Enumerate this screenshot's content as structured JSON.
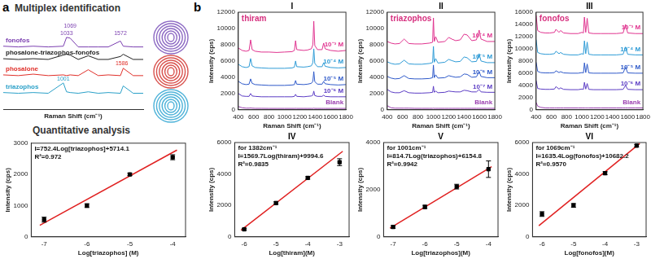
{
  "figure": {
    "panel_labels": [
      "a",
      "b"
    ]
  },
  "chart_data": [
    {
      "type": "line",
      "title": "Multiplex identification",
      "tick_labels": false,
      "grid": false,
      "x_label": "Raman Shift (cm⁻¹)",
      "xlim": [
        400,
        1800
      ],
      "ylim": [
        0,
        12
      ],
      "x": [
        400,
        550,
        700,
        850,
        1001,
        1033,
        1069,
        1150,
        1250,
        1350,
        1450,
        1572,
        1600,
        1700,
        1800
      ],
      "series": [
        {
          "name": "fonofos",
          "color": "#7b3fb0",
          "values": [
            8.6,
            8.5,
            8.6,
            8.5,
            8.6,
            9.8,
            9.7,
            8.5,
            8.5,
            8.5,
            8.5,
            9.3,
            8.6,
            8.5,
            8.5
          ]
        },
        {
          "name": "phosalone-triazophos-fonofos",
          "color": "#222222",
          "values": [
            6.9,
            6.8,
            6.9,
            6.8,
            7.4,
            7.5,
            7.4,
            6.8,
            7.3,
            6.8,
            6.8,
            7.2,
            7.5,
            6.8,
            6.8
          ]
        },
        {
          "name": "phosalone",
          "color": "#e0302a",
          "values": [
            4.7,
            4.6,
            4.8,
            4.6,
            4.7,
            4.6,
            4.7,
            4.6,
            5.4,
            4.6,
            4.7,
            4.6,
            5.6,
            4.6,
            4.6
          ]
        },
        {
          "name": "triazophos",
          "color": "#2aa0c8",
          "values": [
            2.3,
            2.2,
            2.3,
            2.2,
            3.6,
            2.4,
            2.3,
            2.2,
            2.4,
            2.2,
            2.3,
            2.2,
            3.2,
            2.2,
            2.2
          ]
        }
      ],
      "annotations": [
        {
          "text": "1033",
          "x": 1033,
          "y": 9.9,
          "color": "#7b3fb0"
        },
        {
          "text": "1069",
          "x": 1069,
          "y": 10.9,
          "color": "#7b3fb0"
        },
        {
          "text": "1572",
          "x": 1572,
          "y": 10.0,
          "color": "#7b3fb0"
        },
        {
          "text": "1001",
          "x": 1001,
          "y": 3.8,
          "color": "#2aa0c8"
        },
        {
          "text": "1586",
          "x": 1586,
          "y": 5.8,
          "color": "#e0302a"
        }
      ]
    },
    {
      "type": "scatter",
      "title": "Quantitative analysis",
      "grid": false,
      "x_label": "Log[triazophos] (M)",
      "y_label": "Intensity (cps)",
      "xlim": [
        -7.3,
        -3.7
      ],
      "xticks": [
        -7,
        -6,
        -5,
        -4
      ],
      "ylim": [
        0,
        3000
      ],
      "yticks": [
        0,
        1000,
        2000,
        3000
      ],
      "annotations": [
        "I=752.4Log[triazophos]+5714.1",
        "R²=0.972"
      ],
      "series": [
        {
          "type": "scatter",
          "marker": "square",
          "color": "#000000",
          "x": [
            -7,
            -6,
            -5,
            -4
          ],
          "values": [
            550,
            1000,
            2000,
            2550
          ],
          "errors": [
            80,
            60,
            40,
            80
          ]
        },
        {
          "type": "line",
          "color": "#e02020",
          "x": [
            -7.1,
            -3.9
          ],
          "values": [
            372.1,
            2779.7
          ]
        }
      ]
    },
    {
      "type": "line",
      "panel": "I",
      "title": "thiram",
      "grid": false,
      "x_label": "Raman Shift (cm⁻¹)",
      "y_label": "Intensity (cps)",
      "xlim": [
        400,
        1800
      ],
      "xticks": [
        400,
        600,
        800,
        1000,
        1200,
        1400,
        1600,
        1800
      ],
      "ylim": [
        0,
        12000
      ],
      "yticks": [
        0,
        2000,
        4000,
        6000,
        8000,
        10000,
        12000
      ],
      "x": [
        400,
        450,
        500,
        540,
        560,
        580,
        620,
        700,
        800,
        900,
        1000,
        1100,
        1130,
        1145,
        1160,
        1250,
        1300,
        1350,
        1370,
        1382,
        1395,
        1430,
        1490,
        1510,
        1530,
        1600,
        1700,
        1800
      ],
      "series": [
        {
          "name": "10⁻³ M",
          "color": "#e0338f",
          "values": [
            7600,
            7300,
            7200,
            7300,
            8600,
            7400,
            7200,
            7100,
            7100,
            7050,
            7100,
            7150,
            7300,
            8500,
            7400,
            7300,
            7350,
            7500,
            8000,
            10900,
            7900,
            7400,
            7400,
            8200,
            7500,
            7300,
            7200,
            7300
          ]
        },
        {
          "name": "10⁻⁴ M",
          "color": "#2e9bd6",
          "values": [
            5600,
            5300,
            5200,
            5300,
            6300,
            5400,
            5200,
            5150,
            5100,
            5100,
            5100,
            5150,
            5250,
            6000,
            5300,
            5250,
            5300,
            5400,
            5800,
            7500,
            5700,
            5300,
            5300,
            5800,
            5350,
            5200,
            5150,
            5200
          ]
        },
        {
          "name": "10⁻⁵ M",
          "color": "#2e59c9",
          "values": [
            3500,
            3200,
            3100,
            3150,
            3800,
            3250,
            3100,
            3050,
            3000,
            3000,
            3000,
            3050,
            3100,
            3600,
            3150,
            3100,
            3150,
            3250,
            3500,
            4700,
            3450,
            3150,
            3150,
            3500,
            3200,
            3100,
            3050,
            3100
          ]
        },
        {
          "name": "10⁻⁶ M",
          "color": "#5b3cc4",
          "values": [
            2000,
            1700,
            1650,
            1650,
            2000,
            1700,
            1650,
            1600,
            1600,
            1600,
            1600,
            1600,
            1650,
            1900,
            1650,
            1600,
            1650,
            1700,
            1800,
            2300,
            1750,
            1650,
            1650,
            1800,
            1650,
            1600,
            1600,
            1600
          ]
        },
        {
          "name": "Blank",
          "color": "#9b3fb0",
          "values": [
            400,
            250,
            200,
            200,
            220,
            200,
            180,
            180,
            170,
            170,
            170,
            170,
            170,
            180,
            170,
            170,
            170,
            170,
            170,
            200,
            170,
            170,
            170,
            170,
            170,
            170,
            170,
            170
          ]
        }
      ]
    },
    {
      "type": "line",
      "panel": "II",
      "title": "triazophos",
      "grid": false,
      "x_label": "Raman Shift (cm⁻¹)",
      "y_label": "Intensity (cps)",
      "xlim": [
        400,
        1800
      ],
      "xticks": [
        400,
        600,
        800,
        1000,
        1200,
        1400,
        1600,
        1800
      ],
      "ylim": [
        0,
        12000
      ],
      "yticks": [
        0,
        2000,
        4000,
        6000,
        8000,
        10000,
        12000
      ],
      "x": [
        400,
        450,
        500,
        560,
        620,
        680,
        760,
        850,
        950,
        990,
        1001,
        1012,
        1030,
        1060,
        1150,
        1200,
        1240,
        1290,
        1350,
        1400,
        1440,
        1500,
        1560,
        1596,
        1620,
        1700,
        1800
      ],
      "series": [
        {
          "name": "10⁻⁴ M",
          "color": "#e0338f",
          "values": [
            8400,
            8200,
            8100,
            8150,
            8700,
            8150,
            8100,
            8100,
            8200,
            8300,
            11300,
            8400,
            9000,
            8300,
            8400,
            8900,
            8700,
            8500,
            8600,
            9300,
            9200,
            8500,
            8600,
            9800,
            8700,
            8400,
            8400
          ]
        },
        {
          "name": "10⁻⁵ M",
          "color": "#2e9bd6",
          "values": [
            5900,
            5700,
            5600,
            5650,
            6100,
            5650,
            5600,
            5600,
            5700,
            5800,
            7800,
            5850,
            6300,
            5750,
            5850,
            6200,
            6050,
            5900,
            5950,
            6500,
            6400,
            5900,
            5950,
            6900,
            6000,
            5800,
            5800
          ]
        },
        {
          "name": "10⁻⁶ M",
          "color": "#2e59c9",
          "values": [
            4100,
            3900,
            3800,
            3850,
            4200,
            3850,
            3800,
            3800,
            3850,
            3950,
            5500,
            3950,
            4300,
            3900,
            3950,
            4200,
            4100,
            4000,
            4050,
            4400,
            4350,
            4000,
            4050,
            4700,
            4100,
            3950,
            3950
          ]
        },
        {
          "name": "10⁻⁷ M",
          "color": "#5b3cc4",
          "values": [
            2500,
            2200,
            2100,
            2100,
            2350,
            2100,
            2050,
            2050,
            2100,
            2150,
            2900,
            2150,
            2300,
            2100,
            2150,
            2300,
            2250,
            2200,
            2200,
            2400,
            2350,
            2200,
            2200,
            2500,
            2200,
            2150,
            2150
          ]
        },
        {
          "name": "Blank",
          "color": "#9b3fb0",
          "values": [
            500,
            250,
            200,
            200,
            200,
            200,
            180,
            180,
            180,
            180,
            200,
            180,
            180,
            180,
            180,
            180,
            180,
            180,
            180,
            180,
            180,
            180,
            180,
            180,
            180,
            180,
            180
          ]
        }
      ]
    },
    {
      "type": "line",
      "panel": "III",
      "title": "fonofos",
      "grid": false,
      "x_label": "Raman Shift (cm⁻¹)",
      "y_label": "Intensity (cps)",
      "xlim": [
        400,
        1800
      ],
      "xticks": [
        400,
        600,
        800,
        1000,
        1200,
        1400,
        1600,
        1800
      ],
      "ylim": [
        0,
        16000
      ],
      "yticks": [
        0,
        2000,
        4000,
        6000,
        8000,
        10000,
        12000,
        14000,
        16000
      ],
      "x": [
        400,
        420,
        460,
        520,
        580,
        640,
        660,
        700,
        720,
        760,
        850,
        950,
        1000,
        1020,
        1033,
        1050,
        1069,
        1090,
        1150,
        1250,
        1350,
        1450,
        1540,
        1572,
        1600,
        1700,
        1800
      ],
      "series": [
        {
          "name": "10⁻³ M",
          "color": "#e0338f",
          "values": [
            15500,
            13000,
            12700,
            12600,
            12600,
            12700,
            13200,
            12700,
            13000,
            12600,
            12500,
            12500,
            12700,
            12600,
            15200,
            12700,
            15000,
            12600,
            12500,
            12500,
            12500,
            12500,
            12600,
            14000,
            12600,
            12500,
            12500
          ]
        },
        {
          "name": "10⁻⁴ M",
          "color": "#2e9bd6",
          "values": [
            11500,
            9400,
            9200,
            9100,
            9100,
            9200,
            9600,
            9200,
            9400,
            9100,
            9000,
            9000,
            9200,
            9100,
            11300,
            9200,
            11100,
            9100,
            9000,
            9000,
            9000,
            9000,
            9100,
            10300,
            9100,
            9000,
            9000
          ]
        },
        {
          "name": "10⁻⁵ M",
          "color": "#2e59c9",
          "values": [
            7800,
            6300,
            6100,
            6050,
            6050,
            6100,
            6400,
            6100,
            6250,
            6050,
            6000,
            6000,
            6100,
            6050,
            7700,
            6100,
            7500,
            6050,
            6000,
            6000,
            6000,
            6000,
            6050,
            7000,
            6050,
            6000,
            6000
          ]
        },
        {
          "name": "10⁻⁶ M",
          "color": "#5b3cc4",
          "values": [
            4800,
            3500,
            3400,
            3350,
            3350,
            3400,
            3800,
            3400,
            3600,
            3350,
            3300,
            3300,
            3400,
            3350,
            4500,
            3400,
            4300,
            3350,
            3300,
            3300,
            3300,
            3300,
            3350,
            4000,
            3350,
            3300,
            3300
          ]
        },
        {
          "name": "Blank",
          "color": "#9b3fb0",
          "values": [
            1200,
            600,
            400,
            300,
            300,
            300,
            300,
            300,
            300,
            300,
            300,
            300,
            300,
            300,
            300,
            300,
            300,
            300,
            300,
            300,
            300,
            300,
            300,
            300,
            300,
            300,
            300
          ]
        }
      ]
    },
    {
      "type": "scatter",
      "panel": "IV",
      "grid": false,
      "x_label": "Log[thiram](M)",
      "y_label": "Intensity (cps)",
      "xlim": [
        -6.3,
        -2.7
      ],
      "xticks": [
        -6,
        -5,
        -4,
        -3
      ],
      "ylim": [
        0,
        6000
      ],
      "yticks": [
        0,
        2000,
        4000,
        6000
      ],
      "annotations": [
        "for 1382cm⁻¹",
        "I=1569.7Log(thiram)+9994.6",
        "R²=0.9835"
      ],
      "series": [
        {
          "type": "scatter",
          "marker": "square",
          "color": "#000000",
          "x": [
            -6,
            -5,
            -4,
            -3
          ],
          "values": [
            480,
            2150,
            3750,
            4750
          ],
          "errors": [
            60,
            80,
            80,
            220
          ]
        },
        {
          "type": "line",
          "color": "#e02020",
          "x": [
            -6.1,
            -2.9
          ],
          "values": [
            419.4,
            5442.5
          ]
        }
      ]
    },
    {
      "type": "scatter",
      "panel": "V",
      "grid": false,
      "x_label": "Log[triazophos](M)",
      "y_label": "Intensity (cps)",
      "xlim": [
        -7.3,
        -3.7
      ],
      "xticks": [
        -7,
        -6,
        -5,
        -4
      ],
      "ylim": [
        0,
        4000
      ],
      "yticks": [
        0,
        2000,
        4000
      ],
      "annotations": [
        "for 1001cm⁻¹",
        "I=814.7Log(triazophos)+6154.8",
        "R²=0.9942"
      ],
      "series": [
        {
          "type": "scatter",
          "marker": "square",
          "color": "#000000",
          "x": [
            -7,
            -6,
            -5,
            -4
          ],
          "values": [
            420,
            1270,
            2130,
            2870
          ],
          "errors": [
            60,
            70,
            100,
            350
          ]
        },
        {
          "type": "line",
          "color": "#e02020",
          "x": [
            -7.1,
            -3.9
          ],
          "values": [
            370.4,
            2977.5
          ]
        }
      ]
    },
    {
      "type": "scatter",
      "panel": "VI",
      "grid": false,
      "x_label": "Log[fonofos](M)",
      "y_label": "Intensity (cps)",
      "xlim": [
        -6.3,
        -2.7
      ],
      "xticks": [
        -6,
        -5,
        -4,
        -3
      ],
      "ylim": [
        0,
        6000
      ],
      "yticks": [
        0,
        2000,
        4000,
        6000
      ],
      "annotations": [
        "for 1069cm⁻¹",
        "I=1635.4Log(fonofos)+10682.2",
        "R²=0.9570"
      ],
      "series": [
        {
          "type": "scatter",
          "marker": "square",
          "color": "#000000",
          "x": [
            -6,
            -5,
            -4,
            -3
          ],
          "values": [
            1450,
            2000,
            4050,
            5800
          ],
          "errors": [
            150,
            120,
            100,
            80
          ]
        },
        {
          "type": "line",
          "color": "#e02020",
          "x": [
            -6.1,
            -2.9
          ],
          "values": [
            706.3,
            5939.5
          ]
        }
      ]
    }
  ]
}
